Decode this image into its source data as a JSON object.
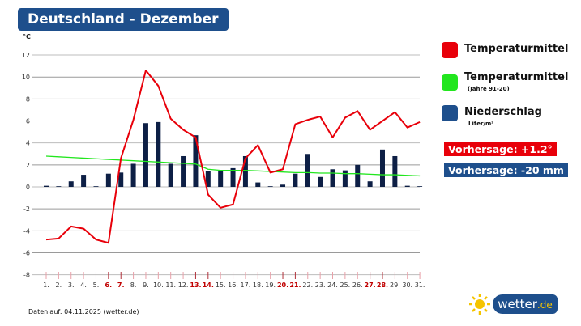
{
  "title": "Deutschland - Dezember",
  "footer": "Datenlauf: 04.11.2025 (wetter.de)",
  "logo": {
    "main": "wetter",
    "suffix": ".de"
  },
  "legend": [
    {
      "label": "Temperaturmittel",
      "sub": "",
      "color": "#e8000a"
    },
    {
      "label": "Temperaturmittel",
      "sub": "(Jahre 91-20)",
      "color": "#22e61e"
    },
    {
      "label": "Niederschlag",
      "sub": "Liter/m²",
      "color": "#1e4f8c"
    }
  ],
  "badges": [
    {
      "text": "Vorhersage: +1.2°",
      "color": "#e8000a"
    },
    {
      "text": "Vorhersage: -20 mm",
      "color": "#1e4f8c"
    }
  ],
  "chart_data": {
    "type": "line+bar",
    "ylabel": "°C",
    "ylim": [
      -8,
      12
    ],
    "yticks": [
      12,
      10,
      8,
      6,
      4,
      2,
      0,
      -2,
      -4,
      -6,
      -8
    ],
    "grid": true,
    "legend_placement": "right",
    "categories": [
      "1.",
      "2.",
      "3.",
      "4.",
      "5.",
      "6.",
      "7.",
      "8.",
      "9.",
      "10.",
      "11.",
      "12.",
      "13.",
      "14.",
      "15.",
      "16.",
      "17.",
      "18.",
      "19.",
      "20.",
      "21.",
      "22.",
      "23.",
      "24.",
      "25.",
      "26.",
      "27.",
      "28.",
      "29.",
      "30.",
      "31."
    ],
    "weekend_days": [
      6,
      7,
      13,
      14,
      20,
      21,
      27,
      28
    ],
    "series": [
      {
        "name": "Temperaturmittel",
        "type": "line",
        "color": "#e8000a",
        "values": [
          -4.8,
          -4.7,
          -3.6,
          -3.8,
          -4.8,
          -5.1,
          2.6,
          6.1,
          10.6,
          9.2,
          6.2,
          5.2,
          4.5,
          -0.7,
          -1.9,
          -1.6,
          2.6,
          3.8,
          1.3,
          1.6,
          5.7,
          6.1,
          6.4,
          4.5,
          6.3,
          6.9,
          5.2,
          6.0,
          6.8,
          5.4,
          5.9
        ]
      },
      {
        "name": "Temperaturmittel (Jahre 91-20)",
        "type": "line",
        "color": "#22e61e",
        "values": [
          2.8,
          2.74,
          2.68,
          2.62,
          2.56,
          2.5,
          2.44,
          2.38,
          2.32,
          2.26,
          2.2,
          2.14,
          2.08,
          1.6,
          1.5,
          1.5,
          1.5,
          1.45,
          1.4,
          1.35,
          1.3,
          1.3,
          1.25,
          1.25,
          1.2,
          1.2,
          1.15,
          1.1,
          1.1,
          1.05,
          1.0
        ]
      },
      {
        "name": "Niederschlag",
        "type": "bar",
        "color": "#0d1f45",
        "values": [
          0.1,
          0,
          0.5,
          1.1,
          0,
          1.2,
          1.3,
          2.1,
          5.8,
          5.9,
          2.1,
          2.8,
          4.7,
          1.4,
          1.5,
          1.7,
          2.8,
          0.4,
          0,
          0.2,
          1.2,
          3.0,
          0.9,
          1.6,
          1.5,
          2.0,
          0.5,
          3.4,
          2.8,
          0.1,
          0
        ]
      }
    ]
  }
}
